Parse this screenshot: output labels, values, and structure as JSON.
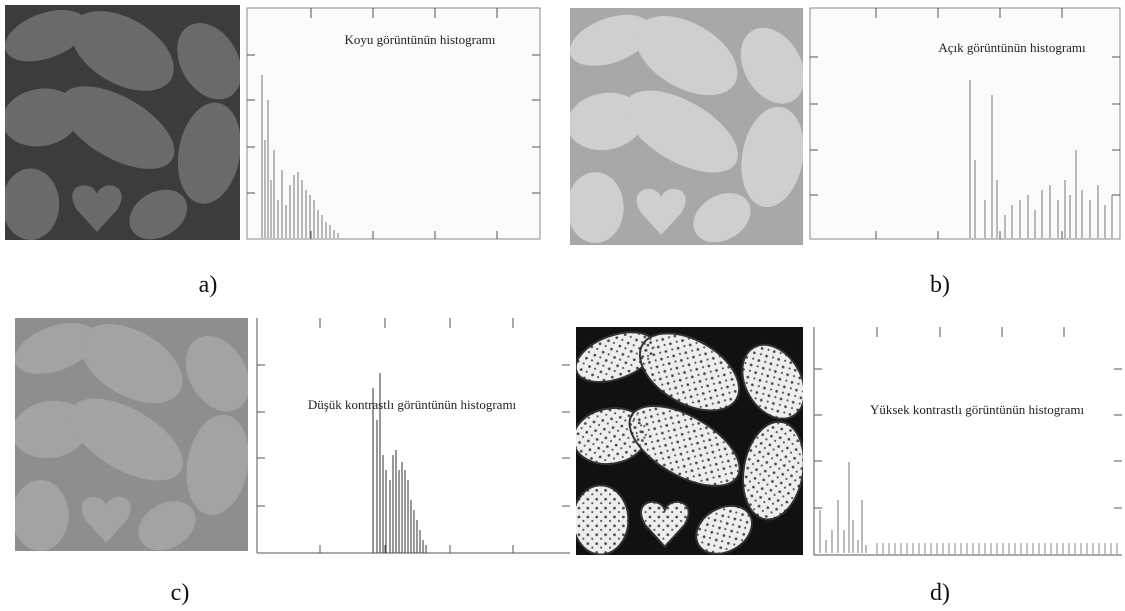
{
  "figure": {
    "panels": [
      {
        "label": "a)",
        "histogram_title": "Koyu görüntünün histogramı"
      },
      {
        "label": "b)",
        "histogram_title": "Açık görüntünün histogramı"
      },
      {
        "label": "c)",
        "histogram_title": "Düşük kontrastlı görüntünün histogramı"
      },
      {
        "label": "d)",
        "histogram_title": "Yüksek kontrastlı görüntünün histogramı"
      }
    ]
  }
}
